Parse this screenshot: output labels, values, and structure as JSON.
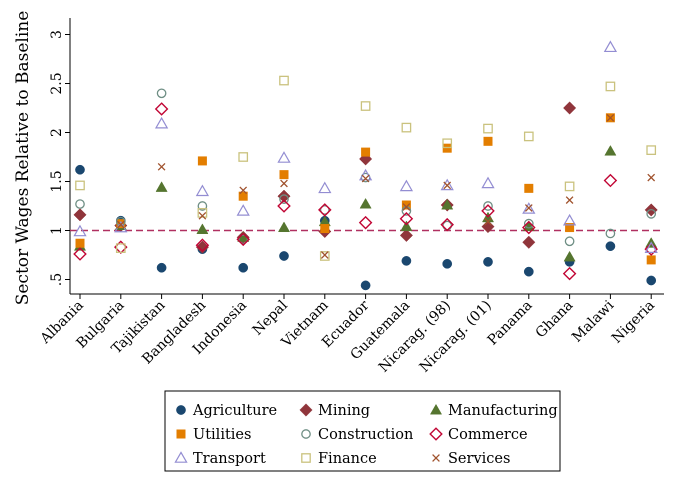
{
  "chart_data": {
    "type": "scatter",
    "ylabel": "Sector Wages Relative to Baseline",
    "xlabel": "",
    "title": "",
    "ylim": [
      0.4,
      3.05
    ],
    "yticks": [
      0.5,
      1,
      1.5,
      2,
      2.5,
      3
    ],
    "ytick_labels": [
      ".5",
      "1",
      "1.5",
      "2",
      "2.5",
      "3"
    ],
    "baseline": 1,
    "baseline_color": "#b03060",
    "categories": [
      "Albania",
      "Bulgaria",
      "Tajikistan",
      "Bangladesh",
      "Indonesia",
      "Nepal",
      "Vietnam",
      "Ecuador",
      "Guatemala",
      "Nicarag. (98)",
      "Nicarag. (01)",
      "Panama",
      "Ghana",
      "Malawi",
      "Nigeria"
    ],
    "legend_position": "bottom",
    "series": [
      {
        "name": "Agriculture",
        "marker": "circle",
        "filled": true,
        "color": "#1a476f",
        "values": [
          1.62,
          1.1,
          0.62,
          0.81,
          0.62,
          0.74,
          1.1,
          0.44,
          0.69,
          0.66,
          0.68,
          0.58,
          0.68,
          0.84,
          0.49
        ]
      },
      {
        "name": "Mining",
        "marker": "diamond",
        "filled": true,
        "color": "#90353b",
        "values": [
          1.16,
          1.05,
          null,
          0.83,
          0.93,
          1.35,
          0.99,
          1.73,
          0.95,
          1.26,
          1.04,
          0.88,
          2.25,
          null,
          1.21
        ]
      },
      {
        "name": "Manufacturing",
        "marker": "triangle",
        "filled": true,
        "color": "#55752f",
        "values": [
          0.84,
          1.05,
          1.44,
          1.01,
          0.93,
          1.03,
          1.09,
          1.27,
          1.04,
          1.26,
          1.13,
          1.04,
          0.73,
          1.81,
          0.87
        ]
      },
      {
        "name": "Utilities",
        "marker": "square",
        "filled": true,
        "color": "#e37e00",
        "values": [
          0.87,
          1.07,
          null,
          1.71,
          1.35,
          1.57,
          1.02,
          1.8,
          1.26,
          1.84,
          1.91,
          1.43,
          1.03,
          2.15,
          0.7
        ]
      },
      {
        "name": "Construction",
        "marker": "circle",
        "filled": false,
        "color": "#6e8e84",
        "values": [
          1.27,
          1.09,
          2.4,
          1.25,
          0.91,
          1.32,
          1.21,
          1.54,
          1.2,
          1.05,
          1.25,
          1.07,
          0.89,
          0.97,
          1.17
        ]
      },
      {
        "name": "Commerce",
        "marker": "diamond",
        "filled": false,
        "color": "#c10534",
        "values": [
          0.76,
          0.83,
          2.24,
          0.85,
          0.91,
          1.25,
          1.21,
          1.08,
          1.12,
          1.06,
          1.2,
          1.03,
          0.56,
          1.51,
          0.81
        ]
      },
      {
        "name": "Transport",
        "marker": "triangle",
        "filled": false,
        "color": "#938dd2",
        "values": [
          0.99,
          1.03,
          2.09,
          1.4,
          1.2,
          1.74,
          1.43,
          1.56,
          1.45,
          1.46,
          1.48,
          1.22,
          1.1,
          2.87,
          0.82
        ]
      },
      {
        "name": "Finance",
        "marker": "square",
        "filled": false,
        "color": "#cac27e",
        "values": [
          1.46,
          0.82,
          null,
          1.18,
          1.75,
          2.53,
          0.74,
          2.27,
          2.05,
          1.89,
          2.04,
          1.96,
          1.45,
          2.47,
          1.82
        ]
      },
      {
        "name": "Services",
        "marker": "x",
        "filled": false,
        "color": "#a0522d",
        "values": [
          null,
          1.06,
          1.65,
          1.15,
          1.41,
          1.48,
          0.75,
          1.53,
          1.24,
          1.46,
          1.09,
          1.23,
          1.31,
          2.15,
          1.54
        ]
      }
    ]
  }
}
